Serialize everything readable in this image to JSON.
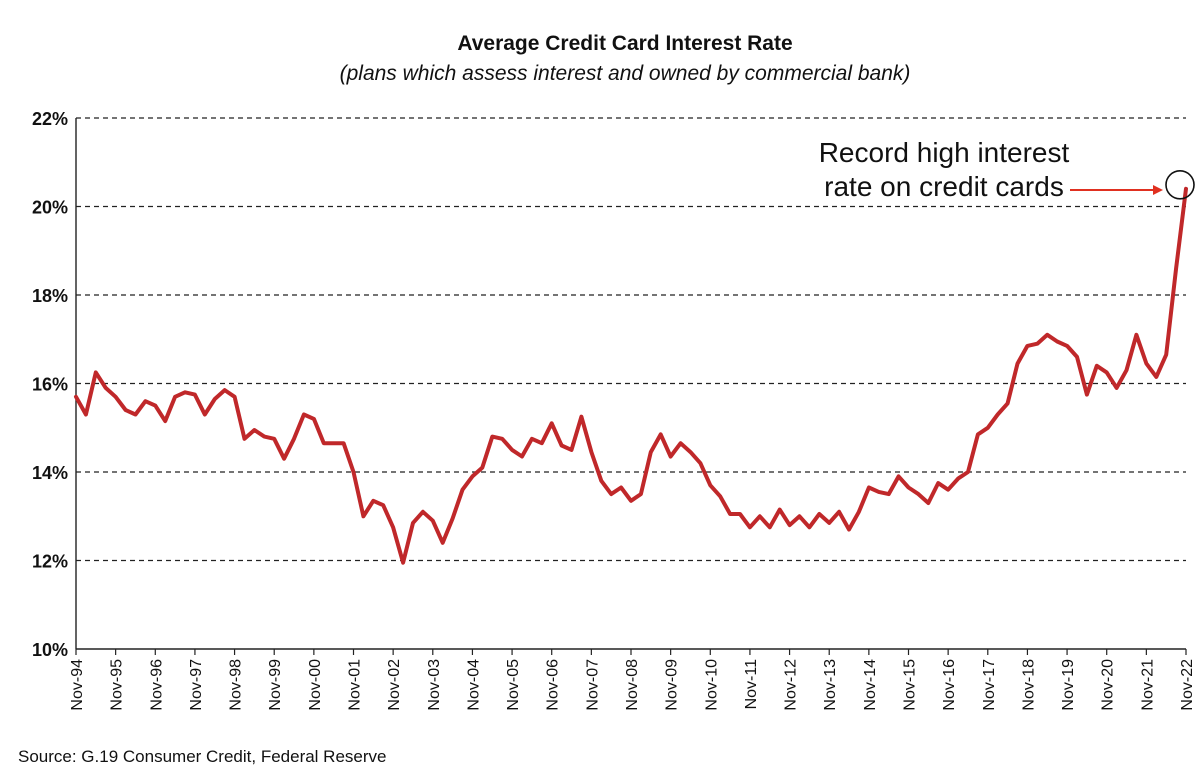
{
  "chart_data": {
    "type": "line",
    "title": "Average Credit Card Interest Rate",
    "subtitle": "(plans which assess interest and owned by commercial bank)",
    "source": "Source: G.19 Consumer Credit, Federal Reserve",
    "y_tick_labels": [
      "10%",
      "12%",
      "14%",
      "16%",
      "18%",
      "20%",
      "22%"
    ],
    "ylim": [
      10,
      22
    ],
    "y_ticks": [
      10,
      12,
      14,
      16,
      18,
      20,
      22
    ],
    "x_tick_labels": [
      "Nov-94",
      "Nov-95",
      "Nov-96",
      "Nov-97",
      "Nov-98",
      "Nov-99",
      "Nov-00",
      "Nov-01",
      "Nov-02",
      "Nov-03",
      "Nov-04",
      "Nov-05",
      "Nov-06",
      "Nov-07",
      "Nov-08",
      "Nov-09",
      "Nov-10",
      "Nov-11",
      "Nov-12",
      "Nov-13",
      "Nov-14",
      "Nov-15",
      "Nov-16",
      "Nov-17",
      "Nov-18",
      "Nov-19",
      "Nov-20",
      "Nov-21",
      "Nov-22"
    ],
    "xlim": [
      1994.833,
      2022.833
    ],
    "grid": "horizontal dashed",
    "line_color": "#c0282a",
    "annotation": {
      "lines": [
        "Record high interest",
        "rate on credit cards"
      ],
      "arrow_color": "#e03020",
      "target": {
        "x": 2022.833,
        "y": 20.4
      }
    },
    "series": [
      {
        "x": [
          1994.833,
          1995.083,
          1995.333,
          1995.583,
          1995.833,
          1996.083,
          1996.333,
          1996.583,
          1996.833,
          1997.083,
          1997.333,
          1997.583,
          1997.833,
          1998.083,
          1998.333,
          1998.583,
          1998.833,
          1999.083,
          1999.333,
          1999.583,
          1999.833,
          2000.083,
          2000.333,
          2000.583,
          2000.833,
          2001.083,
          2001.333,
          2001.583,
          2001.833,
          2002.083,
          2002.333,
          2002.583,
          2002.833,
          2003.083,
          2003.333,
          2003.583,
          2003.833,
          2004.083,
          2004.333,
          2004.583,
          2004.833,
          2005.083,
          2005.333,
          2005.583,
          2005.833,
          2006.083,
          2006.333,
          2006.583,
          2006.833,
          2007.083,
          2007.333,
          2007.583,
          2007.833,
          2008.083,
          2008.333,
          2008.583,
          2008.833,
          2009.083,
          2009.333,
          2009.583,
          2009.833,
          2010.083,
          2010.333,
          2010.583,
          2010.833,
          2011.083,
          2011.333,
          2011.583,
          2011.833,
          2012.083,
          2012.333,
          2012.583,
          2012.833,
          2013.083,
          2013.333,
          2013.583,
          2013.833,
          2014.083,
          2014.333,
          2014.583,
          2014.833,
          2015.083,
          2015.333,
          2015.583,
          2015.833,
          2016.083,
          2016.333,
          2016.583,
          2016.833,
          2017.083,
          2017.333,
          2017.583,
          2017.833,
          2018.083,
          2018.333,
          2018.583,
          2018.833,
          2019.083,
          2019.333,
          2019.583,
          2019.833,
          2020.083,
          2020.333,
          2020.583,
          2020.833,
          2021.083,
          2021.333,
          2021.583,
          2021.833,
          2022.083,
          2022.333,
          2022.583,
          2022.833
        ],
        "y": [
          15.7,
          15.3,
          16.25,
          15.9,
          15.7,
          15.4,
          15.3,
          15.6,
          15.5,
          15.15,
          15.7,
          15.8,
          15.75,
          15.3,
          15.65,
          15.85,
          15.7,
          14.75,
          14.95,
          14.8,
          14.75,
          14.3,
          14.75,
          15.3,
          15.2,
          14.65,
          14.65,
          14.65,
          14.0,
          13.0,
          13.35,
          13.25,
          12.75,
          11.95,
          12.85,
          13.1,
          12.9,
          12.4,
          12.95,
          13.6,
          13.9,
          14.1,
          14.8,
          14.75,
          14.5,
          14.35,
          14.75,
          14.65,
          15.1,
          14.6,
          14.5,
          15.25,
          14.45,
          13.8,
          13.5,
          13.65,
          13.35,
          13.5,
          14.45,
          14.85,
          14.35,
          14.65,
          14.45,
          14.2,
          13.7,
          13.45,
          13.05,
          13.05,
          12.75,
          13.0,
          12.75,
          13.15,
          12.8,
          13.0,
          12.75,
          13.05,
          12.85,
          13.1,
          12.7,
          13.1,
          13.65,
          13.55,
          13.5,
          13.9,
          13.65,
          13.5,
          13.3,
          13.75,
          13.6,
          13.85,
          14.0,
          14.85,
          15.0,
          15.3,
          15.55,
          16.45,
          16.85,
          16.9,
          17.1,
          16.95,
          16.85,
          16.6,
          15.75,
          16.4,
          16.25,
          15.9,
          16.3,
          17.1,
          16.45,
          16.15,
          16.65,
          18.6,
          20.4
        ]
      }
    ]
  }
}
